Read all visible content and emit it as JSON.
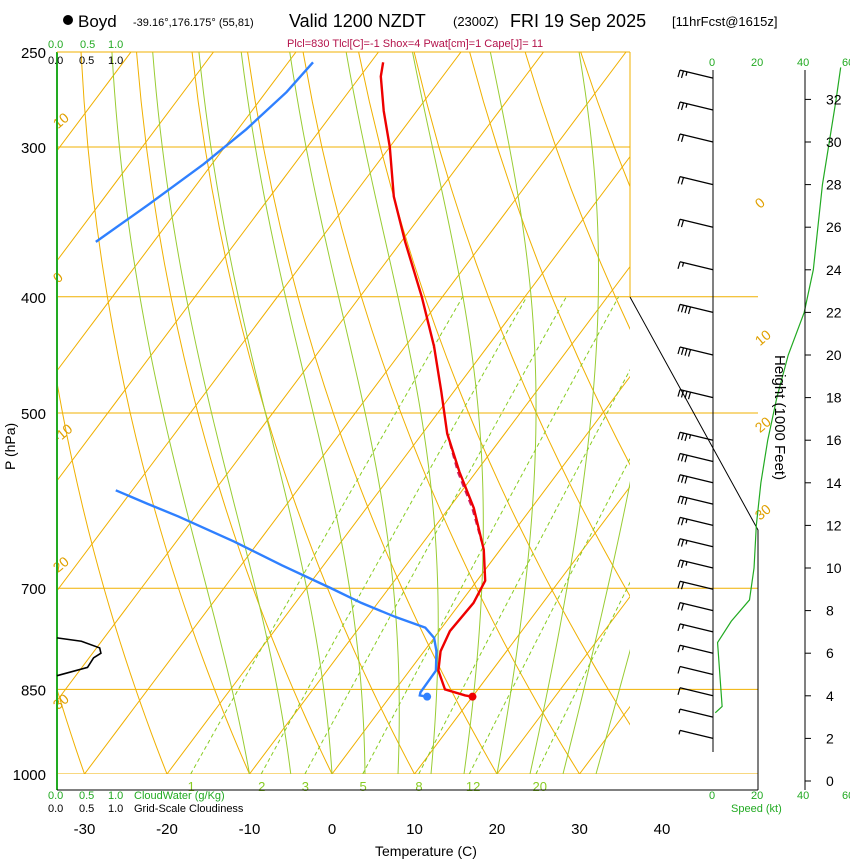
{
  "header": {
    "station": "Boyd",
    "coords": "-39.16°,176.175° (55,81)",
    "valid": "Valid 1200 NZDT",
    "zulu": "(2300Z)",
    "date": "FRI 19 Sep 2025",
    "forecast": "[11hrFcst@1615z]",
    "params": "Plcl=830 Tlcl[C]=-1 Shox=4 Pwat[cm]=1 Cape[J]= 11"
  },
  "colors": {
    "temperature": "#ee0000",
    "dewpoint": "#2f80ff",
    "isotherm": "#f0b000",
    "dry_adiabat": "#f0b000",
    "moist_adiabat": "#99cc33",
    "mixing_ratio": "#88cc22",
    "cloud_water": "#22aa22",
    "cloudiness": "#000000",
    "parcel": "#cc2266"
  },
  "chart_data": {
    "type": "skew-t",
    "xlabel": "Temperature (C)",
    "ylabel": "P (hPa)",
    "right_axis_label": "Height (1000 Feet)",
    "speed_label": "Speed (kt)",
    "cloud_water_label": "CloudWater (g/Kg)",
    "cloudiness_label": "Grid-Scale Cloudiness",
    "x_ticks": [
      -30,
      -20,
      -10,
      0,
      10,
      20,
      30,
      40
    ],
    "pressure_ticks": [
      250,
      300,
      400,
      500,
      700,
      850,
      1000
    ],
    "height_ticks_kft": [
      0,
      2,
      4,
      6,
      8,
      10,
      12,
      14,
      16,
      18,
      20,
      22,
      24,
      26,
      28,
      30,
      32
    ],
    "cloud_water_ticks": [
      "0.0",
      "0.5",
      "1.0"
    ],
    "cloudiness_ticks": [
      "0.0",
      "0.5",
      "1.0"
    ],
    "speed_ticks": [
      "0",
      "20",
      "40",
      "60"
    ],
    "isotherm_labels": [
      {
        "text": "30",
        "p": 885,
        "t": -34
      },
      {
        "text": "20",
        "p": 680,
        "t": -33
      },
      {
        "text": "-10",
        "p": 530,
        "t": -34
      },
      {
        "text": "0",
        "p": 390,
        "t": -33
      },
      {
        "text": "10",
        "p": 290,
        "t": -33
      },
      {
        "text": "0",
        "p": 338,
        "t": 37
      },
      {
        "text": "10",
        "p": 440,
        "t": 41
      },
      {
        "text": "20",
        "p": 520,
        "t": 44
      },
      {
        "text": "30",
        "p": 615,
        "t": 48
      }
    ],
    "mixing_ratio_labels": [
      "1",
      "2",
      "3",
      "5",
      "8",
      "12",
      "20"
    ],
    "temperature_profile": [
      {
        "p": 862,
        "t": 10
      },
      {
        "p": 860,
        "t": 9
      },
      {
        "p": 850,
        "t": 6
      },
      {
        "p": 820,
        "t": 3.5
      },
      {
        "p": 790,
        "t": 2
      },
      {
        "p": 760,
        "t": 1.3
      },
      {
        "p": 720,
        "t": 1.6
      },
      {
        "p": 690,
        "t": 1
      },
      {
        "p": 650,
        "t": -2
      },
      {
        "p": 600,
        "t": -7
      },
      {
        "p": 560,
        "t": -12
      },
      {
        "p": 520,
        "t": -17
      },
      {
        "p": 480,
        "t": -21.5
      },
      {
        "p": 440,
        "t": -26.5
      },
      {
        "p": 400,
        "t": -32.5
      },
      {
        "p": 360,
        "t": -39.5
      },
      {
        "p": 330,
        "t": -45
      },
      {
        "p": 300,
        "t": -50
      },
      {
        "p": 280,
        "t": -54
      },
      {
        "p": 262,
        "t": -57.5
      },
      {
        "p": 255,
        "t": -58.5
      }
    ],
    "dewpoint_profile": [
      {
        "p": 862,
        "t": 4.5
      },
      {
        "p": 860,
        "t": 3.5
      },
      {
        "p": 855,
        "t": 3.3
      },
      {
        "p": 820,
        "t": 3.2
      },
      {
        "p": 790,
        "t": 1.5
      },
      {
        "p": 770,
        "t": 0
      },
      {
        "p": 755,
        "t": -2
      },
      {
        "p": 740,
        "t": -6.5
      },
      {
        "p": 720,
        "t": -12
      },
      {
        "p": 700,
        "t": -17
      },
      {
        "p": 670,
        "t": -25
      },
      {
        "p": 640,
        "t": -33
      },
      {
        "p": 610,
        "t": -42
      },
      {
        "p": 595,
        "t": -47
      },
      {
        "p": 580,
        "t": -52
      }
    ],
    "upper_dewpoint_profile": [
      {
        "p": 255,
        "t": -67
      },
      {
        "p": 270,
        "t": -67.5
      },
      {
        "p": 290,
        "t": -69
      },
      {
        "p": 310,
        "t": -71
      },
      {
        "p": 335,
        "t": -74
      },
      {
        "p": 360,
        "t": -77
      }
    ],
    "parcel_profile": [
      {
        "p": 520,
        "t": -17
      },
      {
        "p": 560,
        "t": -12.2
      },
      {
        "p": 600,
        "t": -7.2
      },
      {
        "p": 640,
        "t": -3
      }
    ],
    "cloudiness_profile": [
      {
        "p": 770,
        "frac": 0.0
      },
      {
        "p": 775,
        "frac": 0.4
      },
      {
        "p": 785,
        "frac": 0.7
      },
      {
        "p": 793,
        "frac": 0.72
      },
      {
        "p": 800,
        "frac": 0.6
      },
      {
        "p": 815,
        "frac": 0.5
      },
      {
        "p": 828,
        "frac": 0.0
      }
    ],
    "wind_barbs": [
      {
        "kft": 33,
        "kt": 25
      },
      {
        "kft": 31.5,
        "kt": 25
      },
      {
        "kft": 30,
        "kt": 20
      },
      {
        "kft": 28,
        "kt": 20
      },
      {
        "kft": 26,
        "kt": 20
      },
      {
        "kft": 24,
        "kt": 15
      },
      {
        "kft": 22,
        "kt": 40
      },
      {
        "kft": 20,
        "kt": 40
      },
      {
        "kft": 18,
        "kt": 40
      },
      {
        "kft": 16,
        "kt": 35
      },
      {
        "kft": 15,
        "kt": 30
      },
      {
        "kft": 14,
        "kt": 30
      },
      {
        "kft": 13,
        "kt": 30
      },
      {
        "kft": 12,
        "kt": 25
      },
      {
        "kft": 11,
        "kt": 25
      },
      {
        "kft": 10,
        "kt": 25
      },
      {
        "kft": 9,
        "kt": 20
      },
      {
        "kft": 8,
        "kt": 20
      },
      {
        "kft": 7,
        "kt": 15
      },
      {
        "kft": 6,
        "kt": 15
      },
      {
        "kft": 5,
        "kt": 10
      },
      {
        "kft": 4,
        "kt": 10
      },
      {
        "kft": 3,
        "kt": 5
      },
      {
        "kft": 2,
        "kt": 5
      }
    ],
    "wind_speed_profile": [
      {
        "kft": 3.2,
        "kt": 1
      },
      {
        "kft": 3.5,
        "kt": 4
      },
      {
        "kft": 5,
        "kt": 3
      },
      {
        "kft": 6.5,
        "kt": 2
      },
      {
        "kft": 7.5,
        "kt": 8
      },
      {
        "kft": 8.5,
        "kt": 16
      },
      {
        "kft": 10,
        "kt": 18
      },
      {
        "kft": 12,
        "kt": 19
      },
      {
        "kft": 14,
        "kt": 21
      },
      {
        "kft": 16,
        "kt": 24
      },
      {
        "kft": 18,
        "kt": 28
      },
      {
        "kft": 20,
        "kt": 33
      },
      {
        "kft": 22,
        "kt": 40
      },
      {
        "kft": 24,
        "kt": 44
      },
      {
        "kft": 26,
        "kt": 46
      },
      {
        "kft": 28,
        "kt": 48
      },
      {
        "kft": 30,
        "kt": 51
      },
      {
        "kft": 32,
        "kt": 54
      },
      {
        "kft": 33.5,
        "kt": 56
      }
    ],
    "surface_temp": 10,
    "surface_dewpoint": 4.5
  }
}
